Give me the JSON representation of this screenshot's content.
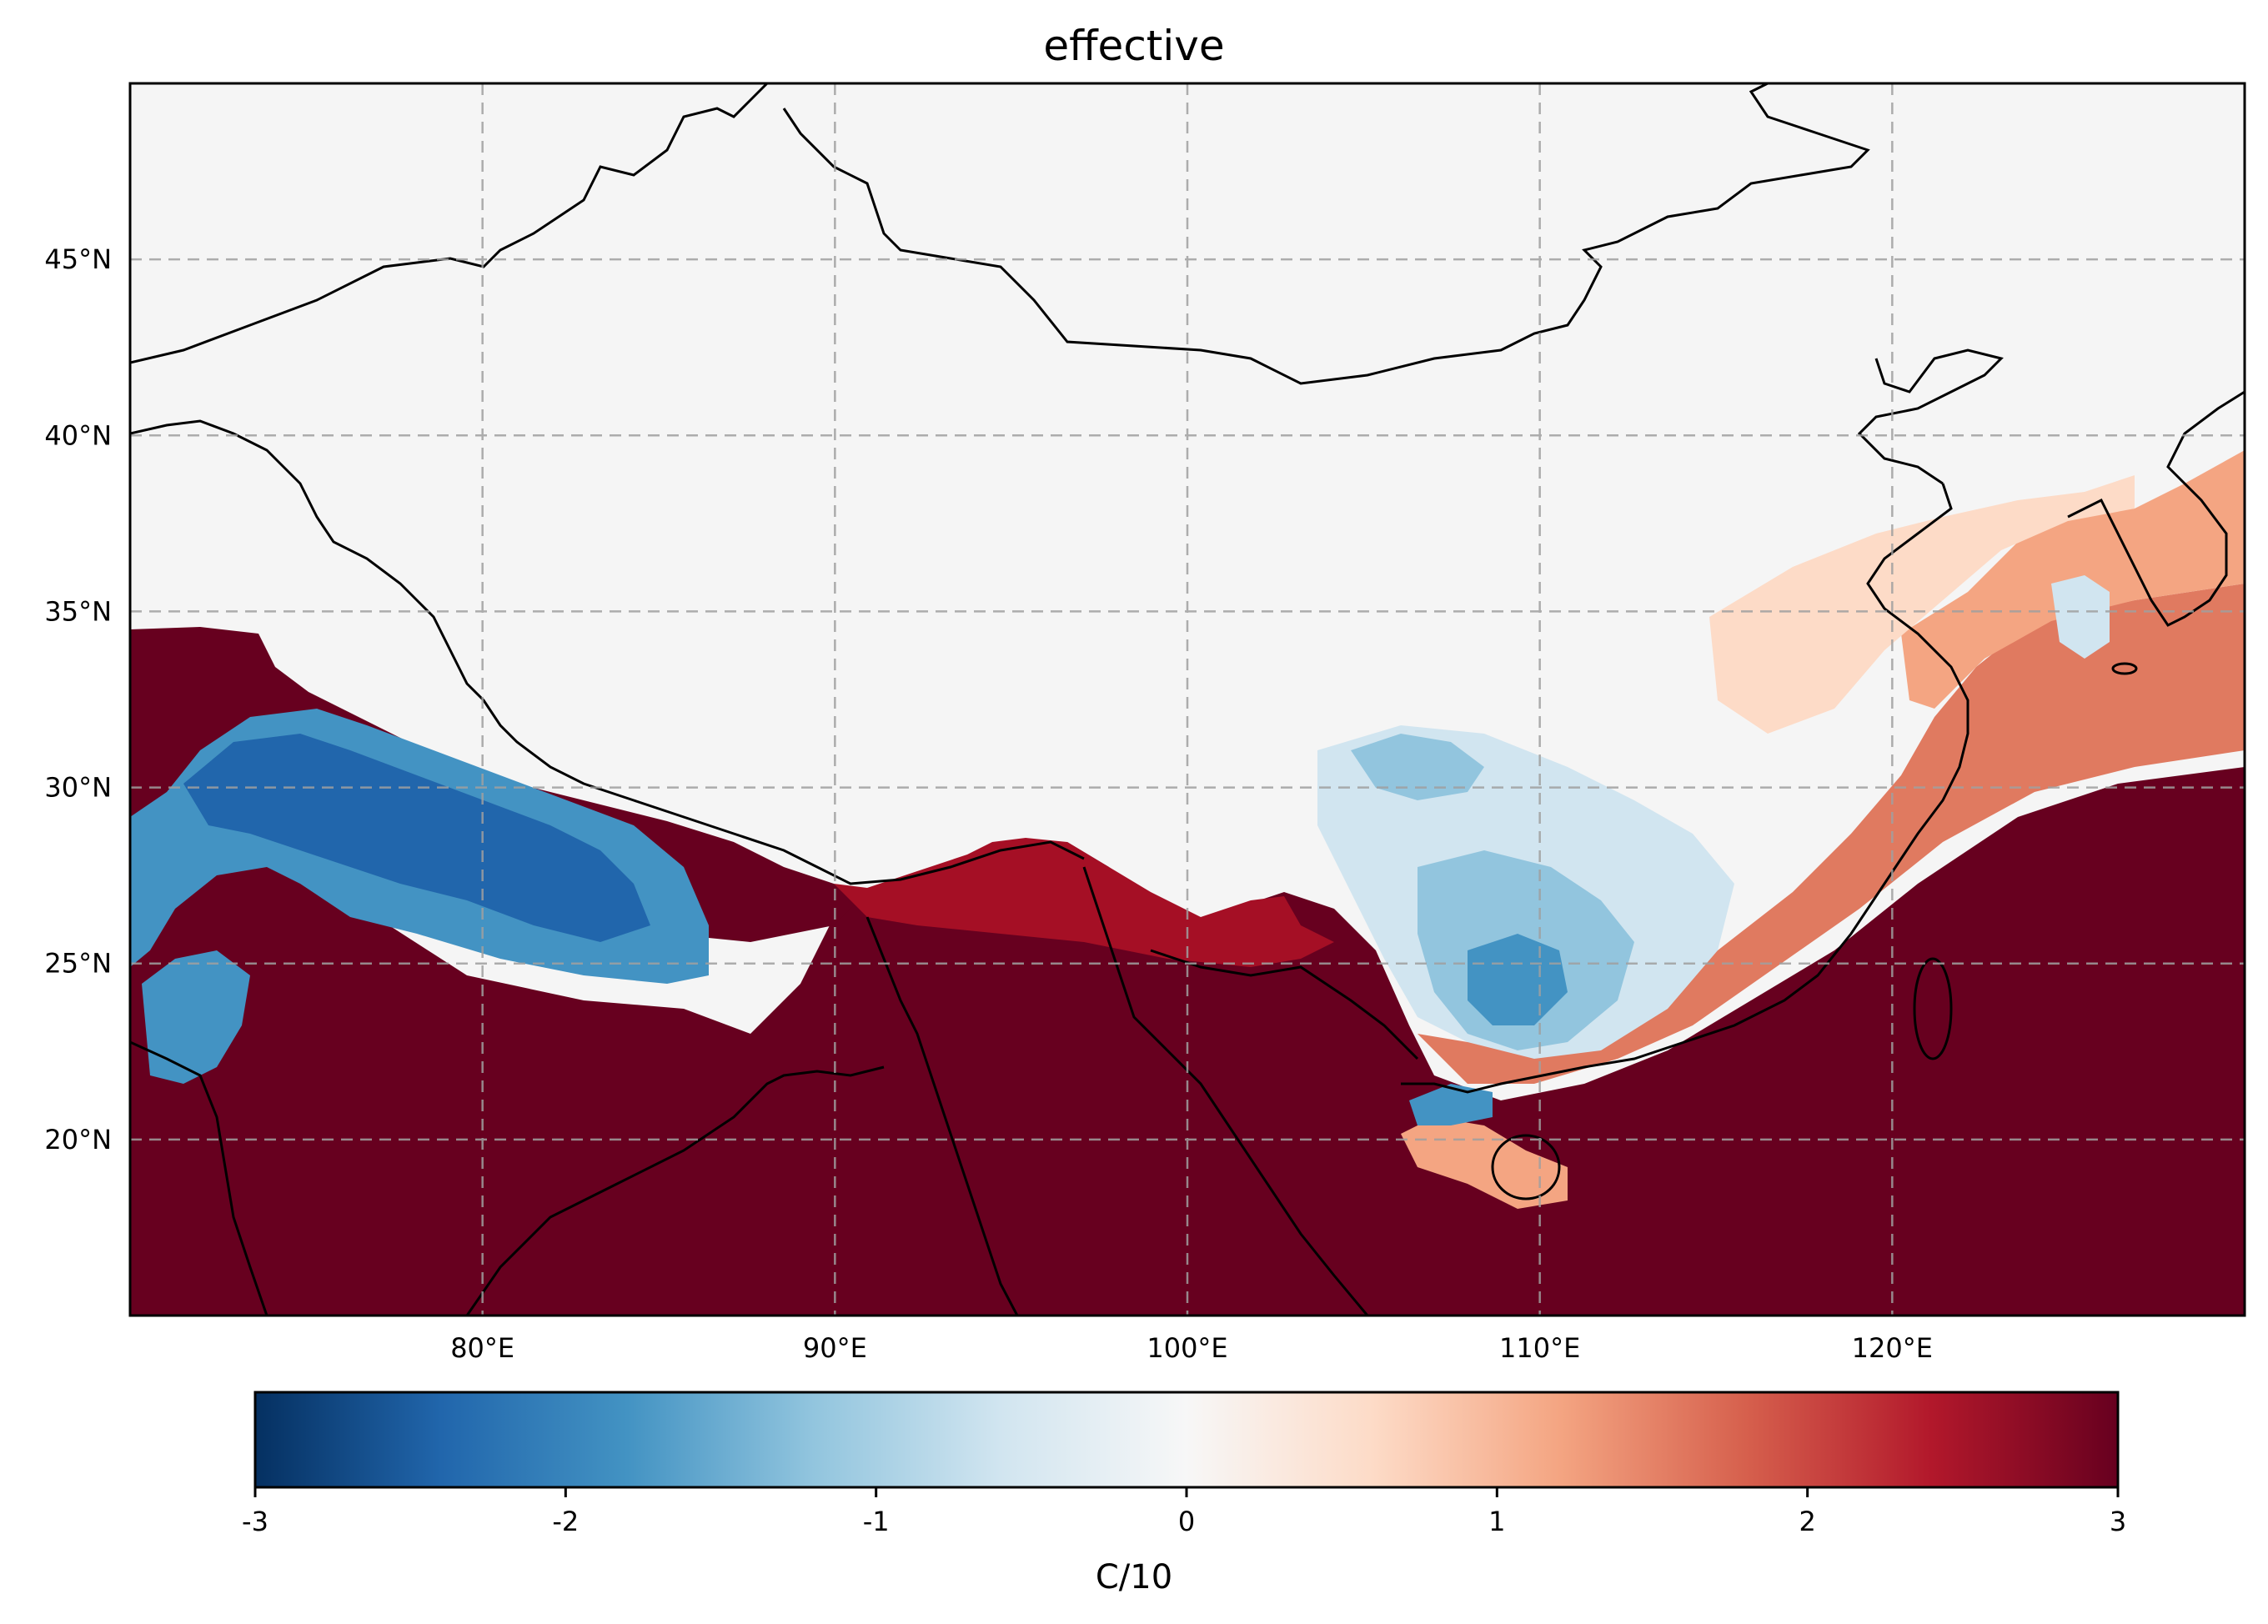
{
  "title": "effective",
  "map": {
    "projection": "PlateCarree",
    "lon_range": [
      70,
      130
    ],
    "lat_range": [
      15,
      50
    ],
    "gridlines": true,
    "gridline_style": "dashed",
    "coastlines": true,
    "borders": true,
    "lon_ticks": [
      80,
      90,
      100,
      110,
      120
    ],
    "lat_ticks": [
      20,
      25,
      30,
      35,
      40,
      45
    ],
    "lon_tick_labels": [
      "80°E",
      "90°E",
      "100°E",
      "110°E",
      "120°E"
    ],
    "lat_tick_labels": [
      "20°N",
      "25°N",
      "30°N",
      "35°N",
      "40°N",
      "45°N"
    ],
    "no_data_color": "#f5f5f5",
    "field": "gridded effective temperature anomaly; strongly positive (dark red) over India plains, Bay of Bengal, Myanmar, Indochina, South China Sea and East China Sea; negative (blue) band along northern India / Himalayan foothills and over central-south China near 105-110E 22-30N; near-zero over Tibet, Xinjiang, Mongolia, north China"
  },
  "colorbar": {
    "label": "C/10",
    "colormap": "RdBu_r",
    "range": [
      -3,
      3
    ],
    "ticks": [
      -3,
      -2,
      -1,
      0,
      1,
      2,
      3
    ],
    "tick_labels": [
      "-3",
      "-2",
      "-1",
      "0",
      "1",
      "2",
      "3"
    ],
    "orientation": "horizontal",
    "stops": [
      "#053061",
      "#2166ac",
      "#4393c3",
      "#92c5de",
      "#d1e5f0",
      "#f7f7f7",
      "#fddbc7",
      "#f4a582",
      "#d6604d",
      "#b2182b",
      "#67001f"
    ]
  }
}
